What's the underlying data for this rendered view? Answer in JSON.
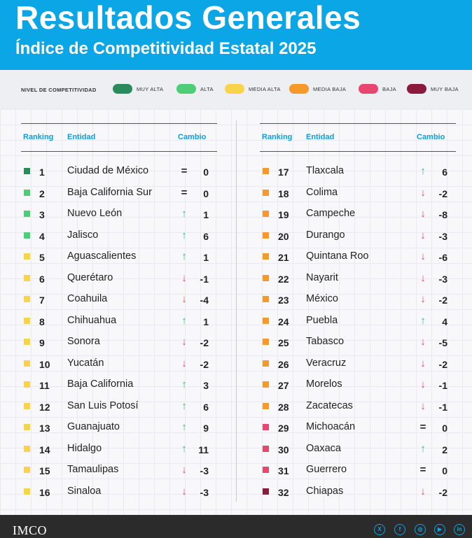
{
  "header": {
    "title": "Resultados Generales",
    "subtitle": "Índice de Competitividad Estatal 2025"
  },
  "legend": {
    "title": "NIVEL DE COMPETITIVIDAD",
    "items": [
      {
        "label": "MUY ALTA",
        "color": "#2a8a5c"
      },
      {
        "label": "ALTA",
        "color": "#4fcc78"
      },
      {
        "label": "MEDIA ALTA",
        "color": "#f7d44a"
      },
      {
        "label": "MEDIA BAJA",
        "color": "#f59a2a"
      },
      {
        "label": "BAJA",
        "color": "#e8456f"
      },
      {
        "label": "MUY BAJA",
        "color": "#8c1a3c"
      }
    ]
  },
  "table": {
    "headers": {
      "ranking": "Ranking",
      "entidad": "Entidad",
      "cambio": "Cambio"
    },
    "left": [
      {
        "rank": "1",
        "entity": "Ciudad de México",
        "level": 0,
        "dir": "eq",
        "change": "0"
      },
      {
        "rank": "2",
        "entity": "Baja California Sur",
        "level": 1,
        "dir": "eq",
        "change": "0"
      },
      {
        "rank": "3",
        "entity": "Nuevo León",
        "level": 1,
        "dir": "up",
        "change": "1"
      },
      {
        "rank": "4",
        "entity": "Jalisco",
        "level": 1,
        "dir": "up",
        "change": "6"
      },
      {
        "rank": "5",
        "entity": "Aguascalientes",
        "level": 2,
        "dir": "up",
        "change": "1"
      },
      {
        "rank": "6",
        "entity": "Querétaro",
        "level": 2,
        "dir": "down",
        "change": "-1"
      },
      {
        "rank": "7",
        "entity": "Coahuila",
        "level": 2,
        "dir": "down",
        "change": "-4"
      },
      {
        "rank": "8",
        "entity": "Chihuahua",
        "level": 2,
        "dir": "up",
        "change": "1"
      },
      {
        "rank": "9",
        "entity": "Sonora",
        "level": 2,
        "dir": "down",
        "change": "-2"
      },
      {
        "rank": "10",
        "entity": "Yucatán",
        "level": 2,
        "dir": "down",
        "change": "-2"
      },
      {
        "rank": "11",
        "entity": "Baja California",
        "level": 2,
        "dir": "up",
        "change": "3"
      },
      {
        "rank": "12",
        "entity": "San Luis Potosí",
        "level": 2,
        "dir": "up",
        "change": "6"
      },
      {
        "rank": "13",
        "entity": "Guanajuato",
        "level": 2,
        "dir": "up",
        "change": "9"
      },
      {
        "rank": "14",
        "entity": "Hidalgo",
        "level": 2,
        "dir": "up",
        "change": "11"
      },
      {
        "rank": "15",
        "entity": "Tamaulipas",
        "level": 2,
        "dir": "down",
        "change": "-3"
      },
      {
        "rank": "16",
        "entity": "Sinaloa",
        "level": 2,
        "dir": "down",
        "change": "-3"
      }
    ],
    "right": [
      {
        "rank": "17",
        "entity": "Tlaxcala",
        "level": 3,
        "dir": "up",
        "change": "6"
      },
      {
        "rank": "18",
        "entity": "Colima",
        "level": 3,
        "dir": "down",
        "change": "-2"
      },
      {
        "rank": "19",
        "entity": "Campeche",
        "level": 3,
        "dir": "down",
        "change": "-8"
      },
      {
        "rank": "20",
        "entity": "Durango",
        "level": 3,
        "dir": "down",
        "change": "-3"
      },
      {
        "rank": "21",
        "entity": "Quintana Roo",
        "level": 3,
        "dir": "down",
        "change": "-6"
      },
      {
        "rank": "22",
        "entity": "Nayarit",
        "level": 3,
        "dir": "down",
        "change": "-3"
      },
      {
        "rank": "23",
        "entity": "México",
        "level": 3,
        "dir": "down",
        "change": "-2"
      },
      {
        "rank": "24",
        "entity": "Puebla",
        "level": 3,
        "dir": "up",
        "change": "4"
      },
      {
        "rank": "25",
        "entity": "Tabasco",
        "level": 3,
        "dir": "down",
        "change": "-5"
      },
      {
        "rank": "26",
        "entity": "Veracruz",
        "level": 3,
        "dir": "down",
        "change": "-2"
      },
      {
        "rank": "27",
        "entity": "Morelos",
        "level": 3,
        "dir": "down",
        "change": "-1"
      },
      {
        "rank": "28",
        "entity": "Zacatecas",
        "level": 3,
        "dir": "down",
        "change": "-1"
      },
      {
        "rank": "29",
        "entity": "Michoacán",
        "level": 4,
        "dir": "eq",
        "change": "0"
      },
      {
        "rank": "30",
        "entity": "Oaxaca",
        "level": 4,
        "dir": "up",
        "change": "2"
      },
      {
        "rank": "31",
        "entity": "Guerrero",
        "level": 4,
        "dir": "eq",
        "change": "0"
      },
      {
        "rank": "32",
        "entity": "Chiapas",
        "level": 5,
        "dir": "down",
        "change": "-2"
      }
    ]
  },
  "footer": {
    "logo": "IMCO",
    "social": [
      "x-icon",
      "facebook-icon",
      "instagram-icon",
      "youtube-icon",
      "linkedin-icon"
    ]
  },
  "icons": {
    "up": "↑",
    "down": "↓",
    "eq": "="
  }
}
